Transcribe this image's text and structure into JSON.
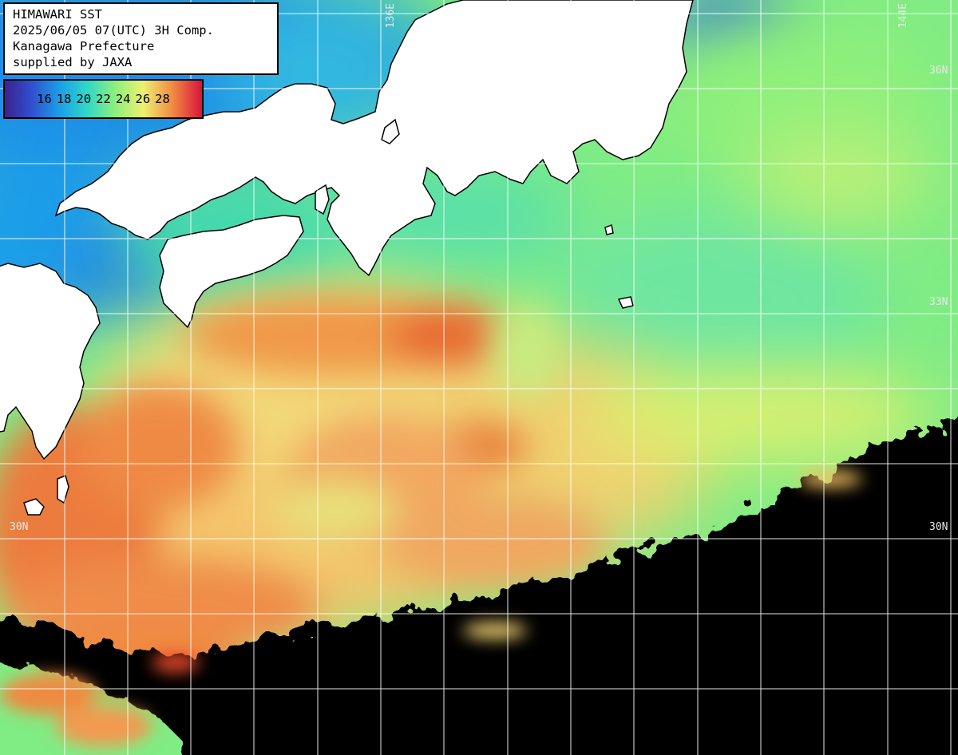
{
  "header": {
    "line1": "HIMAWARI SST",
    "line2": "2025/06/05 07(UTC) 3H Comp.",
    "line3": "Kanagawa Prefecture",
    "line4": "supplied by JAXA"
  },
  "legend": {
    "ticks": [
      "16",
      "18",
      "20",
      "22",
      "24",
      "26",
      "28"
    ],
    "gradient_colors": [
      "#3b1f8c",
      "#1a6fe8",
      "#22c8e0",
      "#58e890",
      "#e6f070",
      "#f39a3e",
      "#e0203a"
    ]
  },
  "grid_labels": {
    "lon_136": "136E",
    "lon_144": "144E",
    "lat_36": "36N",
    "lat_33": "33N",
    "lat_30_left": "30N",
    "lat_30_right": "30N"
  },
  "colors": {
    "land": "#ffffff",
    "no_data": "#000000",
    "grid": "#ffffff",
    "cold": "#1e90e8",
    "cool": "#38d8b0",
    "mild": "#8ef07a",
    "warm": "#f2d070",
    "hot": "#ef8a44",
    "hottest": "#e86030"
  }
}
